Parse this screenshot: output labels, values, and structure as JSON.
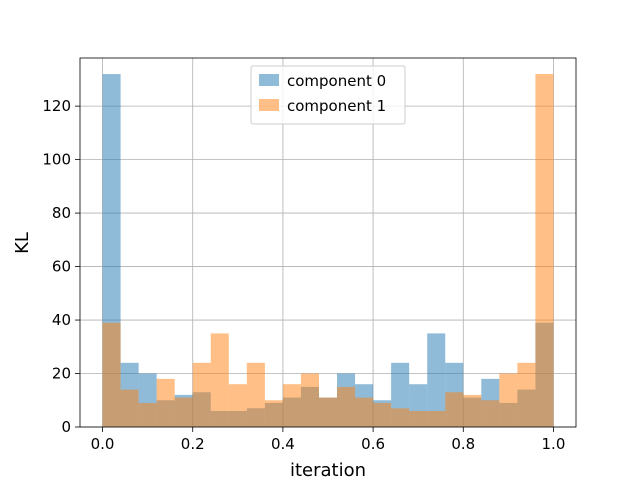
{
  "chart_data": {
    "type": "bar",
    "subtype": "overlapping-histogram",
    "title": "",
    "xlabel": "iteration",
    "ylabel": "KL",
    "xlim": [
      -0.05,
      1.05
    ],
    "ylim": [
      0,
      138
    ],
    "xticks": [
      "0.0",
      "0.2",
      "0.4",
      "0.6",
      "0.8",
      "1.0"
    ],
    "yticks": [
      "0",
      "20",
      "40",
      "60",
      "80",
      "100",
      "120"
    ],
    "grid": true,
    "legend_position": "top-center",
    "bin_edges": [
      0.0,
      0.04,
      0.08,
      0.12,
      0.16,
      0.2,
      0.24,
      0.28,
      0.32,
      0.36,
      0.4,
      0.44,
      0.48,
      0.52,
      0.56,
      0.6,
      0.64,
      0.68,
      0.72,
      0.76,
      0.8,
      0.84,
      0.88,
      0.92,
      0.96,
      1.0
    ],
    "series": [
      {
        "name": "component 0",
        "color": "#1f77b4",
        "alpha": 0.5,
        "values": [
          132,
          24,
          20,
          10,
          12,
          13,
          6,
          6,
          7,
          9,
          11,
          15,
          11,
          20,
          16,
          10,
          24,
          16,
          35,
          24,
          11,
          18,
          9,
          14,
          39
        ]
      },
      {
        "name": "component 1",
        "color": "#ff7f0e",
        "alpha": 0.5,
        "values": [
          39,
          14,
          9,
          18,
          11,
          24,
          35,
          16,
          24,
          10,
          16,
          20,
          11,
          15,
          11,
          9,
          7,
          6,
          6,
          13,
          12,
          10,
          20,
          24,
          132
        ]
      }
    ]
  }
}
